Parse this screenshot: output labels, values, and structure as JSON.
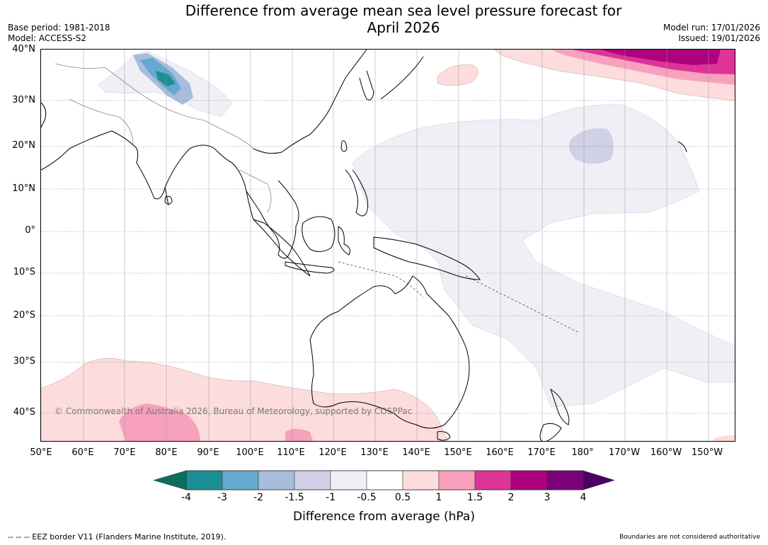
{
  "header": {
    "title_line1": "Difference from average mean sea level pressure forecast for",
    "title_line2": "April 2026",
    "base_period": "Base period: 1981-2018",
    "model": "Model: ACCESS-S2",
    "model_run": "Model run: 17/01/2026",
    "issued": "Issued: 19/01/2026"
  },
  "map": {
    "latitude_labels": [
      "40°N",
      "30°N",
      "20°N",
      "10°N",
      "0°",
      "10°S",
      "20°S",
      "30°S",
      "40°S"
    ],
    "longitude_labels": [
      "50°E",
      "60°E",
      "70°E",
      "80°E",
      "90°E",
      "100°E",
      "110°E",
      "120°E",
      "130°E",
      "140°E",
      "150°E",
      "160°E",
      "170°E",
      "180°",
      "170°W",
      "160°W",
      "150°W"
    ],
    "copyright": "© Commonwealth of Australia 2026, Bureau of Meteorology, supported by COSPPac"
  },
  "colorbar": {
    "labels": [
      "-4",
      "-3",
      "-2",
      "-1.5",
      "-1",
      "-0.5",
      "0.5",
      "1",
      "1.5",
      "2",
      "3",
      "4"
    ],
    "under_color": "#0e6e5c",
    "over_color": "#4a0063",
    "colors": [
      "#1c8f96",
      "#66a8cf",
      "#a6bddb",
      "#d0d1e6",
      "#f1eef6",
      "#ffffff",
      "#fcdcdc",
      "#f7a1bc",
      "#dd3497",
      "#ae017e",
      "#7a0177"
    ],
    "title": "Difference from average (hPa)"
  },
  "footer": {
    "eez_note": "--  --  -- EEZ border V11 (Flanders Marine Institute, 2019).",
    "boundaries_note": "Boundaries are not considered authoritative"
  }
}
